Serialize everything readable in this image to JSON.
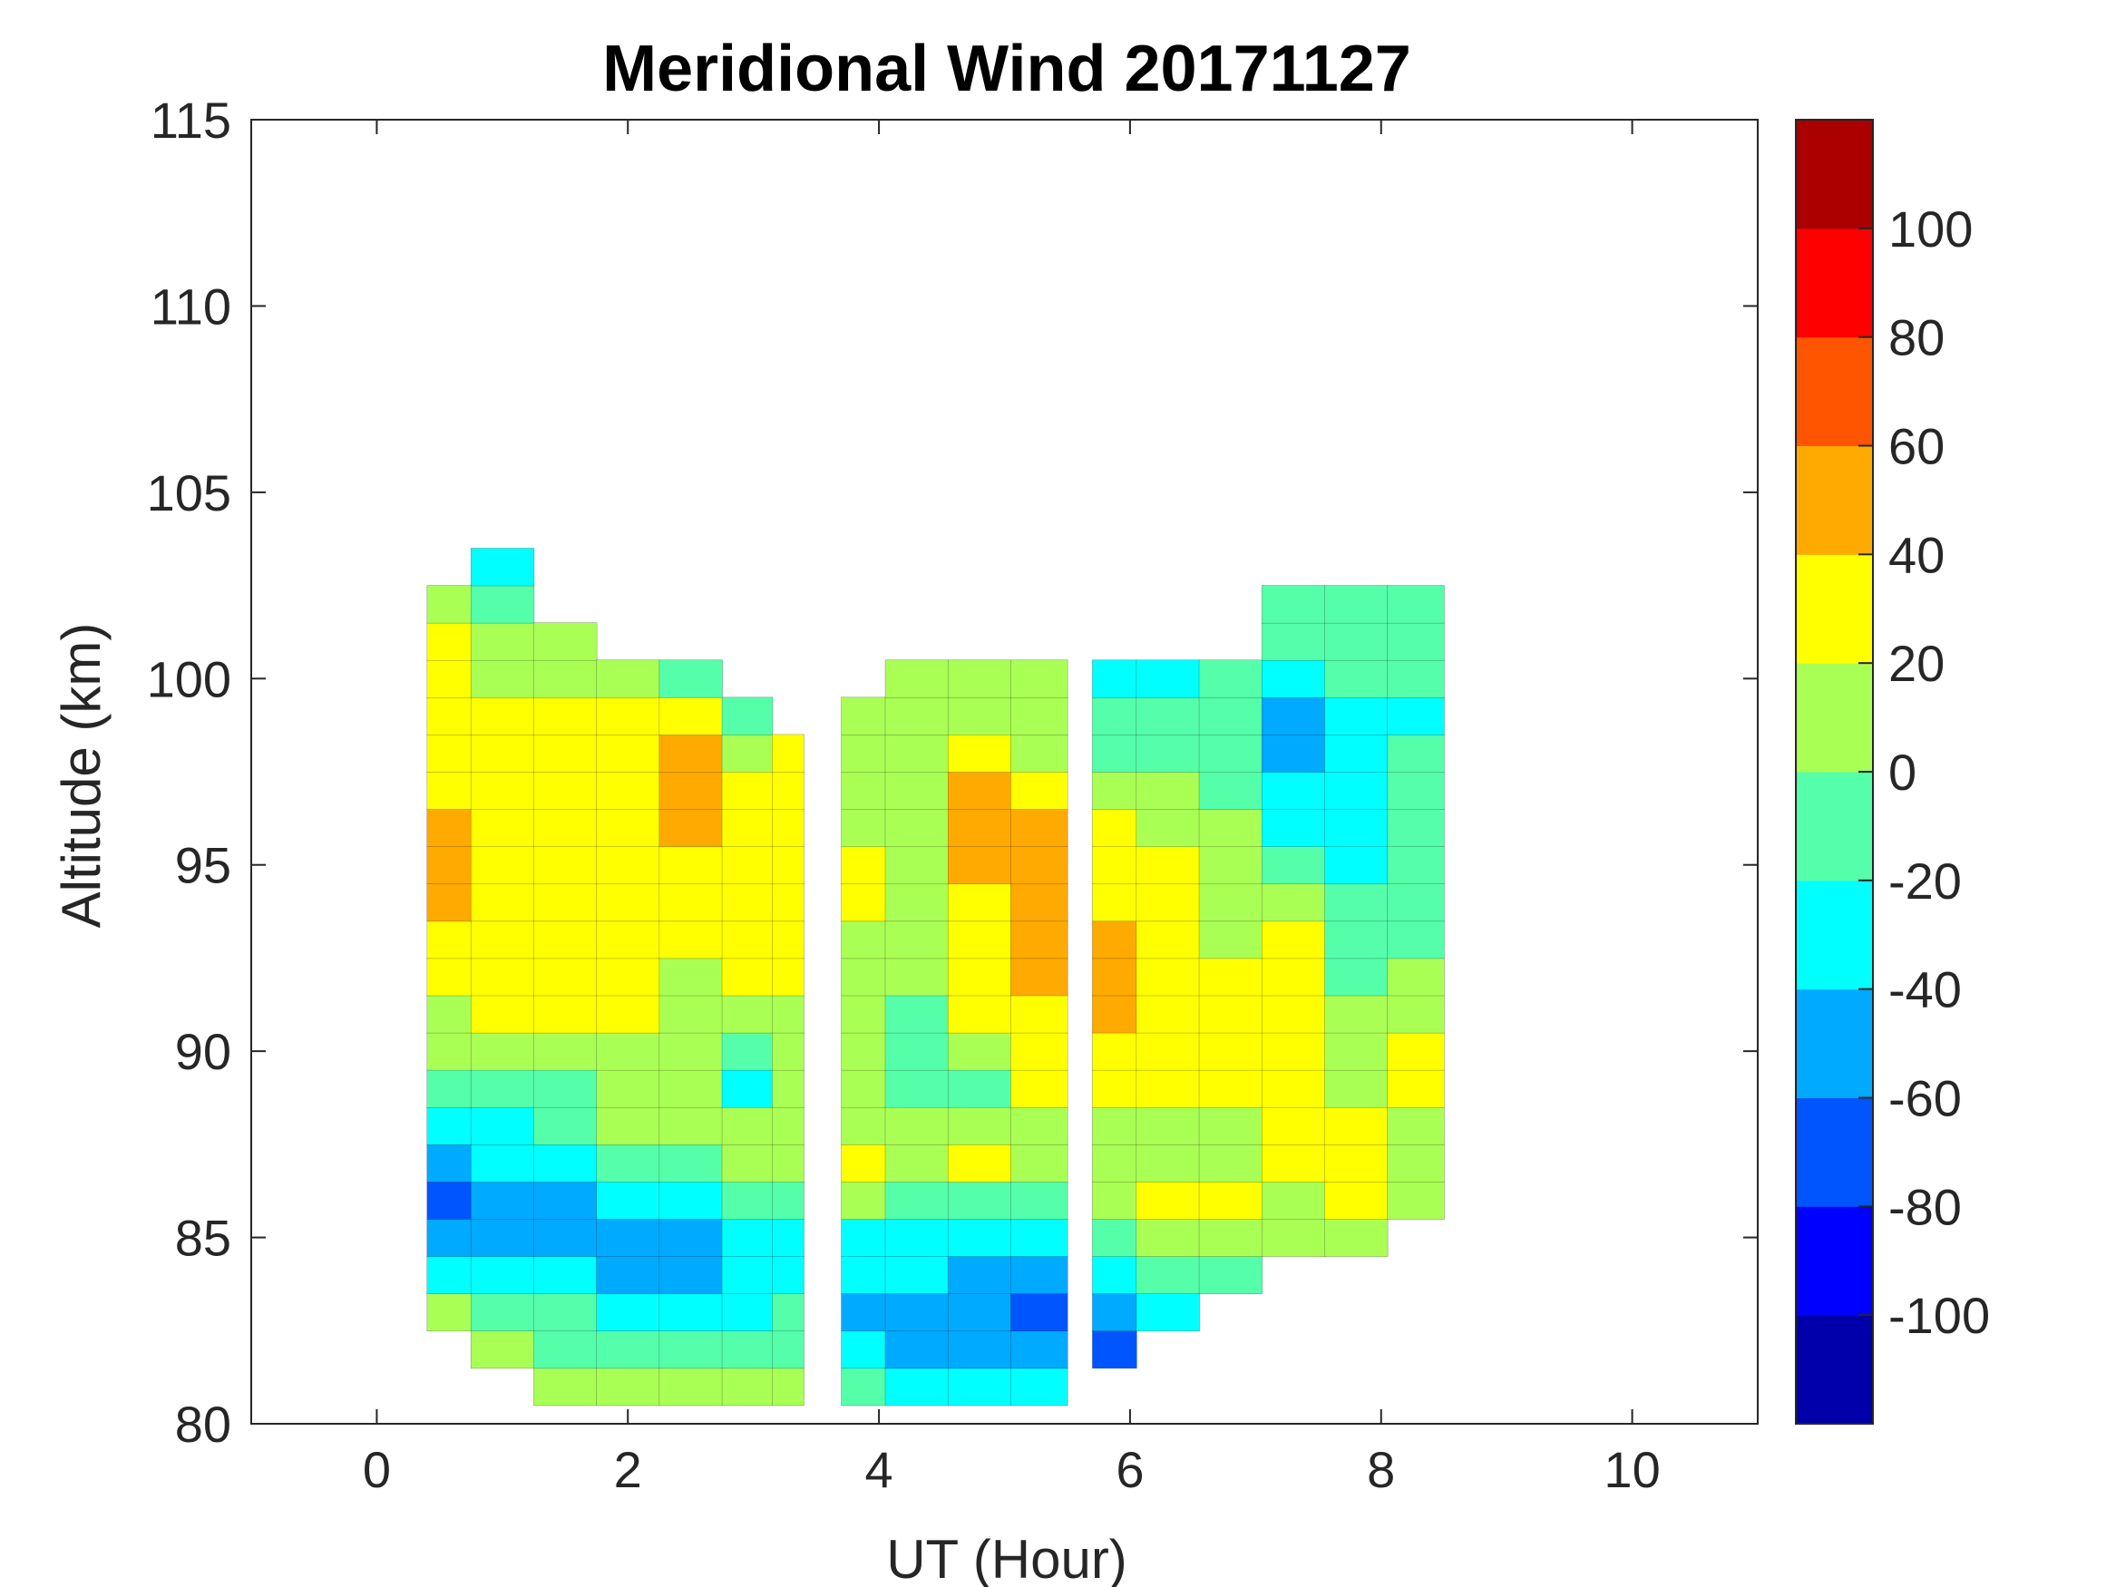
{
  "chart_data": {
    "type": "heatmap",
    "subtype": "filled-contour",
    "title": "Meridional Wind 20171127",
    "xlabel": "UT (Hour)",
    "ylabel": "Altitude (km)",
    "xlim": [
      -1,
      11
    ],
    "ylim": [
      80,
      115
    ],
    "xticks": [
      0,
      2,
      4,
      6,
      8,
      10
    ],
    "yticks": [
      80,
      85,
      90,
      95,
      100,
      105,
      110,
      115
    ],
    "grid": false,
    "colorbar": {
      "position": "right",
      "range": [
        -120,
        120
      ],
      "levels": [
        -120,
        -100,
        -80,
        -60,
        -40,
        -20,
        0,
        20,
        40,
        60,
        80,
        100,
        120
      ],
      "ticks": [
        -100,
        -80,
        -60,
        -40,
        -20,
        0,
        20,
        40,
        60,
        80,
        100
      ],
      "colors": [
        "#0000aa",
        "#0000ff",
        "#0055ff",
        "#00aaff",
        "#00ffff",
        "#55ffaa",
        "#aaff55",
        "#ffff00",
        "#ffaa00",
        "#ff5500",
        "#ff0000",
        "#aa0000"
      ]
    },
    "altitude_start": 81,
    "altitude_step": 1,
    "columns": [
      {
        "t": 0.5,
        "t0": 0.4,
        "t1": 0.75,
        "values": [
          null,
          null,
          10,
          -30,
          -50,
          -70,
          -50,
          -30,
          -10,
          10,
          10,
          30,
          30,
          50,
          50,
          50,
          30,
          30,
          30,
          30,
          30,
          10,
          null
        ]
      },
      {
        "t": 1.0,
        "t0": 0.75,
        "t1": 1.25,
        "values": [
          null,
          10,
          -10,
          -30,
          -50,
          -50,
          -30,
          -30,
          -10,
          10,
          30,
          30,
          30,
          30,
          30,
          30,
          30,
          30,
          30,
          10,
          10,
          -10,
          -30
        ]
      },
      {
        "t": 1.5,
        "t0": 1.25,
        "t1": 1.75,
        "values": [
          10,
          -10,
          -10,
          -30,
          -50,
          -50,
          -30,
          -10,
          -10,
          10,
          30,
          30,
          30,
          30,
          30,
          30,
          30,
          30,
          30,
          10,
          10,
          null,
          null
        ]
      },
      {
        "t": 2.0,
        "t0": 1.75,
        "t1": 2.25,
        "values": [
          10,
          -10,
          -30,
          -50,
          -50,
          -30,
          -10,
          10,
          10,
          10,
          30,
          30,
          30,
          30,
          30,
          30,
          30,
          30,
          30,
          10,
          null,
          null,
          null
        ]
      },
      {
        "t": 2.5,
        "t0": 2.25,
        "t1": 2.75,
        "values": [
          10,
          -10,
          -30,
          -50,
          -50,
          -30,
          -10,
          10,
          10,
          10,
          10,
          10,
          30,
          30,
          30,
          50,
          50,
          50,
          30,
          -10,
          null,
          null,
          null
        ]
      },
      {
        "t": 3.0,
        "t0": 2.75,
        "t1": 3.15,
        "values": [
          10,
          -10,
          -30,
          -30,
          -30,
          -10,
          10,
          10,
          -30,
          -10,
          10,
          30,
          30,
          30,
          30,
          30,
          30,
          10,
          -10,
          null,
          null,
          null,
          null
        ]
      },
      {
        "t": 3.3,
        "t0": 3.15,
        "t1": 3.4,
        "values": [
          10,
          -10,
          -10,
          -30,
          -30,
          -10,
          10,
          10,
          10,
          10,
          10,
          30,
          30,
          30,
          30,
          30,
          30,
          30,
          null,
          null,
          null,
          null,
          null
        ]
      },
      {
        "t": 3.8,
        "t0": 3.7,
        "t1": 4.05,
        "values": [
          -10,
          -30,
          -50,
          -30,
          -30,
          10,
          30,
          10,
          10,
          10,
          10,
          10,
          10,
          30,
          30,
          10,
          10,
          10,
          10,
          null,
          null,
          null,
          null
        ]
      },
      {
        "t": 4.3,
        "t0": 4.05,
        "t1": 4.55,
        "values": [
          -30,
          -50,
          -50,
          -30,
          -30,
          -10,
          10,
          10,
          -10,
          -10,
          -10,
          10,
          10,
          10,
          10,
          10,
          10,
          10,
          10,
          10,
          null,
          null,
          null
        ]
      },
      {
        "t": 4.8,
        "t0": 4.55,
        "t1": 5.05,
        "values": [
          -30,
          -50,
          -50,
          -50,
          -30,
          -10,
          30,
          10,
          -10,
          10,
          30,
          30,
          30,
          30,
          50,
          50,
          50,
          30,
          10,
          10,
          null,
          null,
          null
        ]
      },
      {
        "t": 5.3,
        "t0": 5.05,
        "t1": 5.5,
        "values": [
          -30,
          -50,
          -70,
          -50,
          -30,
          -10,
          10,
          10,
          30,
          30,
          30,
          50,
          50,
          50,
          50,
          50,
          30,
          10,
          10,
          10,
          null,
          null,
          null
        ]
      },
      {
        "t": 5.8,
        "t0": 5.7,
        "t1": 6.05,
        "values": [
          null,
          -70,
          -50,
          -30,
          -10,
          10,
          10,
          10,
          30,
          30,
          50,
          50,
          50,
          30,
          30,
          30,
          10,
          -10,
          -10,
          -30,
          null,
          null,
          null
        ]
      },
      {
        "t": 6.3,
        "t0": 6.05,
        "t1": 6.55,
        "values": [
          null,
          null,
          -30,
          -10,
          10,
          30,
          10,
          10,
          30,
          30,
          30,
          30,
          30,
          30,
          30,
          10,
          10,
          -10,
          -10,
          -30,
          null,
          null,
          null
        ]
      },
      {
        "t": 6.8,
        "t0": 6.55,
        "t1": 7.05,
        "values": [
          null,
          null,
          null,
          -10,
          10,
          30,
          10,
          10,
          30,
          30,
          30,
          30,
          10,
          10,
          10,
          10,
          -10,
          -10,
          -10,
          -10,
          null,
          null,
          null
        ]
      },
      {
        "t": 7.3,
        "t0": 7.05,
        "t1": 7.55,
        "values": [
          null,
          null,
          null,
          null,
          10,
          10,
          30,
          30,
          30,
          30,
          30,
          30,
          30,
          10,
          -10,
          -30,
          -30,
          -50,
          -50,
          -30,
          -10,
          -10,
          null
        ]
      },
      {
        "t": 7.8,
        "t0": 7.55,
        "t1": 8.05,
        "values": [
          null,
          null,
          null,
          null,
          10,
          30,
          30,
          30,
          10,
          10,
          10,
          -10,
          -10,
          -10,
          -30,
          -30,
          -30,
          -30,
          -30,
          -10,
          -10,
          -10,
          null
        ]
      },
      {
        "t": 8.3,
        "t0": 8.05,
        "t1": 8.5,
        "values": [
          null,
          null,
          null,
          null,
          null,
          10,
          10,
          10,
          30,
          30,
          10,
          10,
          -10,
          -10,
          -10,
          -10,
          -10,
          -10,
          -30,
          -10,
          -10,
          -10,
          null
        ]
      }
    ]
  }
}
